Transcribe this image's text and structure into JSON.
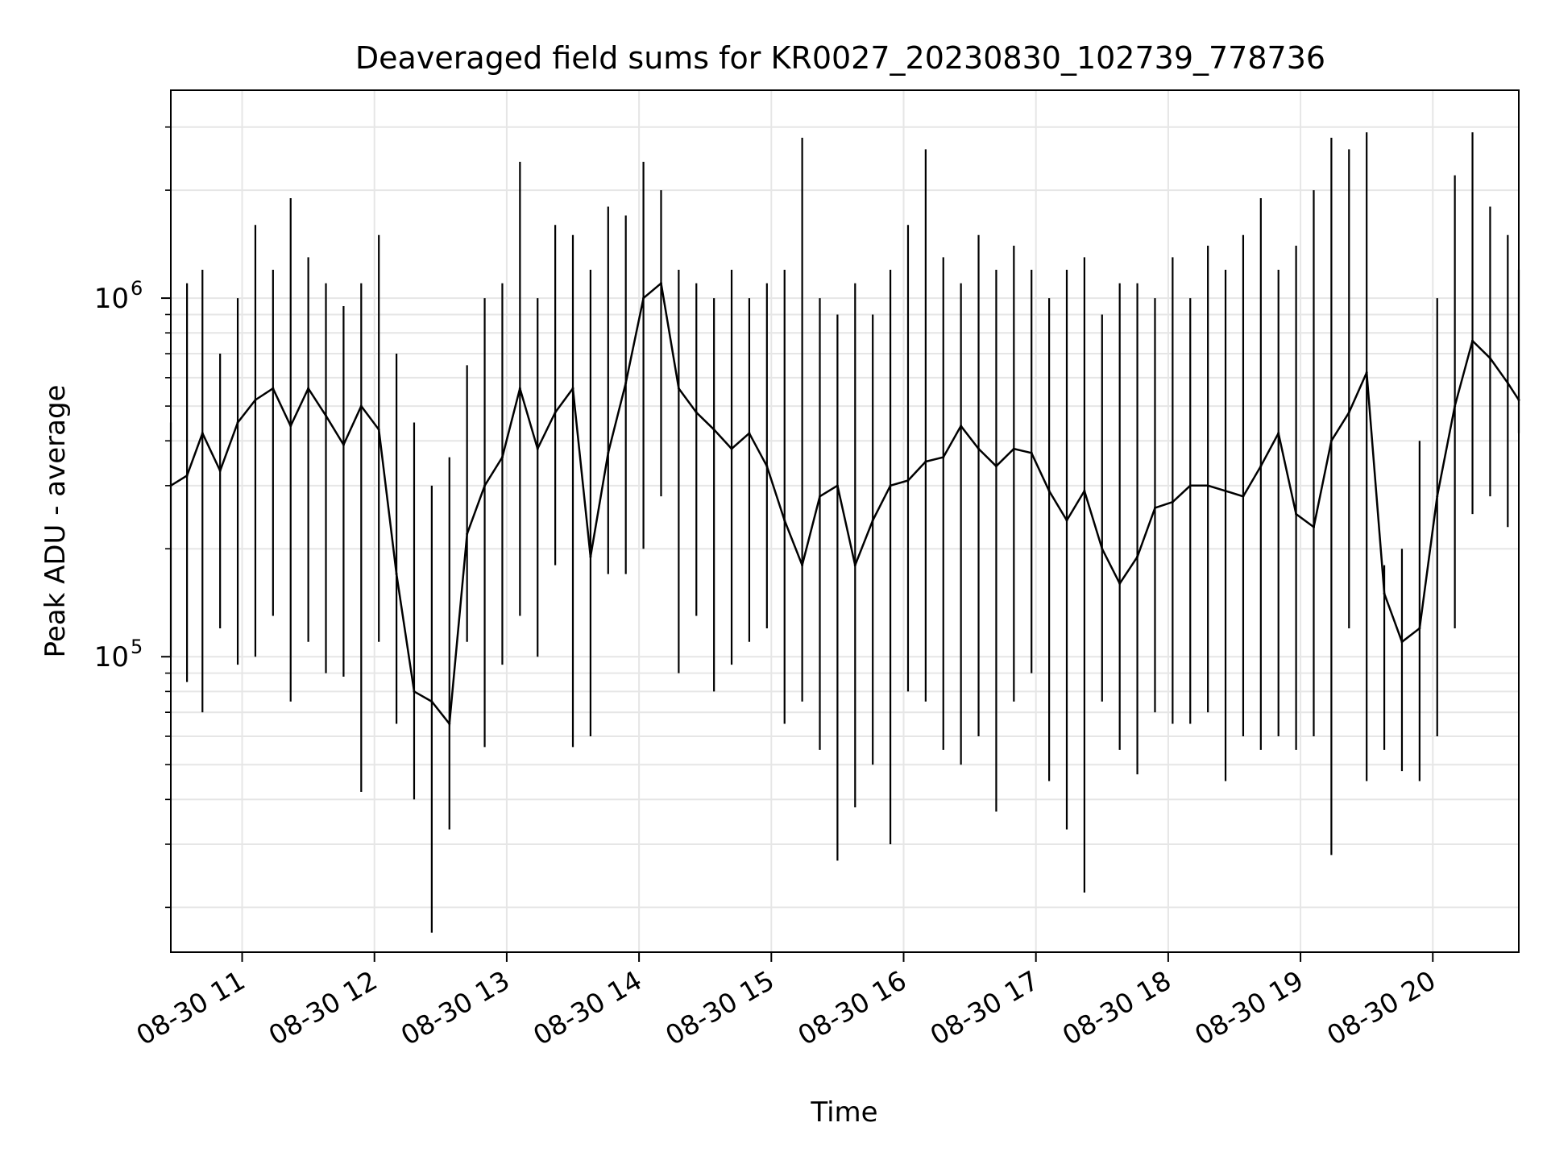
{
  "chart_data": {
    "type": "line",
    "title": "Deaveraged field sums for KR0027_20230830_102739_778736",
    "xlabel": "Time",
    "ylabel": "Peak ADU - average",
    "y_scale": "log",
    "ylim": [
      15000,
      3800000
    ],
    "xlim": [
      "2023-08-30T10:27:39",
      "2023-08-30T20:39:00"
    ],
    "grid": true,
    "line_color": "#000000",
    "x_ticks": [
      {
        "t": "2023-08-30T11:00:00",
        "label": "08-30 11"
      },
      {
        "t": "2023-08-30T12:00:00",
        "label": "08-30 12"
      },
      {
        "t": "2023-08-30T13:00:00",
        "label": "08-30 13"
      },
      {
        "t": "2023-08-30T14:00:00",
        "label": "08-30 14"
      },
      {
        "t": "2023-08-30T15:00:00",
        "label": "08-30 15"
      },
      {
        "t": "2023-08-30T16:00:00",
        "label": "08-30 16"
      },
      {
        "t": "2023-08-30T17:00:00",
        "label": "08-30 17"
      },
      {
        "t": "2023-08-30T18:00:00",
        "label": "08-30 18"
      },
      {
        "t": "2023-08-30T19:00:00",
        "label": "08-30 19"
      },
      {
        "t": "2023-08-30T20:00:00",
        "label": "08-30 20"
      }
    ],
    "y_ticks": [
      {
        "value": 100000,
        "base": "10",
        "exp": "5"
      },
      {
        "value": 1000000,
        "base": "10",
        "exp": "6"
      }
    ],
    "x": [
      "2023-08-30T10:27:39",
      "2023-08-30T10:35:00",
      "2023-08-30T10:42:00",
      "2023-08-30T10:50:00",
      "2023-08-30T10:58:00",
      "2023-08-30T11:06:00",
      "2023-08-30T11:14:00",
      "2023-08-30T11:22:00",
      "2023-08-30T11:30:00",
      "2023-08-30T11:38:00",
      "2023-08-30T11:46:00",
      "2023-08-30T11:54:00",
      "2023-08-30T12:02:00",
      "2023-08-30T12:10:00",
      "2023-08-30T12:18:00",
      "2023-08-30T12:26:00",
      "2023-08-30T12:34:00",
      "2023-08-30T12:42:00",
      "2023-08-30T12:50:00",
      "2023-08-30T12:58:00",
      "2023-08-30T13:06:00",
      "2023-08-30T13:14:00",
      "2023-08-30T13:22:00",
      "2023-08-30T13:30:00",
      "2023-08-30T13:38:00",
      "2023-08-30T13:46:00",
      "2023-08-30T13:54:00",
      "2023-08-30T14:02:00",
      "2023-08-30T14:10:00",
      "2023-08-30T14:18:00",
      "2023-08-30T14:26:00",
      "2023-08-30T14:34:00",
      "2023-08-30T14:42:00",
      "2023-08-30T14:50:00",
      "2023-08-30T14:58:00",
      "2023-08-30T15:06:00",
      "2023-08-30T15:14:00",
      "2023-08-30T15:22:00",
      "2023-08-30T15:30:00",
      "2023-08-30T15:38:00",
      "2023-08-30T15:46:00",
      "2023-08-30T15:54:00",
      "2023-08-30T16:02:00",
      "2023-08-30T16:10:00",
      "2023-08-30T16:18:00",
      "2023-08-30T16:26:00",
      "2023-08-30T16:34:00",
      "2023-08-30T16:42:00",
      "2023-08-30T16:50:00",
      "2023-08-30T16:58:00",
      "2023-08-30T17:06:00",
      "2023-08-30T17:14:00",
      "2023-08-30T17:22:00",
      "2023-08-30T17:30:00",
      "2023-08-30T17:38:00",
      "2023-08-30T17:46:00",
      "2023-08-30T17:54:00",
      "2023-08-30T18:02:00",
      "2023-08-30T18:10:00",
      "2023-08-30T18:18:00",
      "2023-08-30T18:26:00",
      "2023-08-30T18:34:00",
      "2023-08-30T18:42:00",
      "2023-08-30T18:50:00",
      "2023-08-30T18:58:00",
      "2023-08-30T19:06:00",
      "2023-08-30T19:14:00",
      "2023-08-30T19:22:00",
      "2023-08-30T19:30:00",
      "2023-08-30T19:38:00",
      "2023-08-30T19:46:00",
      "2023-08-30T19:54:00",
      "2023-08-30T20:02:00",
      "2023-08-30T20:10:00",
      "2023-08-30T20:18:00",
      "2023-08-30T20:26:00",
      "2023-08-30T20:34:00",
      "2023-08-30T20:39:00"
    ],
    "y": [
      300000,
      320000,
      420000,
      330000,
      450000,
      520000,
      560000,
      440000,
      560000,
      470000,
      390000,
      500000,
      430000,
      170000,
      80000,
      75000,
      65000,
      220000,
      300000,
      360000,
      560000,
      380000,
      480000,
      560000,
      190000,
      370000,
      580000,
      1000000,
      1100000,
      560000,
      480000,
      430000,
      380000,
      420000,
      340000,
      240000,
      180000,
      280000,
      300000,
      180000,
      240000,
      300000,
      310000,
      350000,
      360000,
      440000,
      380000,
      340000,
      380000,
      370000,
      290000,
      240000,
      290000,
      200000,
      160000,
      190000,
      260000,
      270000,
      300000,
      300000,
      290000,
      280000,
      340000,
      420000,
      250000,
      230000,
      400000,
      480000,
      620000,
      150000,
      110000,
      120000,
      280000,
      500000,
      760000,
      680000,
      580000,
      520000
    ],
    "y_upper": [
      450000,
      1100000,
      1200000,
      700000,
      1000000,
      1600000,
      1200000,
      1900000,
      1300000,
      1100000,
      950000,
      1100000,
      1500000,
      700000,
      450000,
      300000,
      360000,
      650000,
      1000000,
      1100000,
      2400000,
      1000000,
      1600000,
      1500000,
      1200000,
      1800000,
      1700000,
      2400000,
      2000000,
      1200000,
      1100000,
      1000000,
      1200000,
      1000000,
      1100000,
      1200000,
      2800000,
      1000000,
      900000,
      1100000,
      900000,
      1200000,
      1600000,
      2600000,
      1300000,
      1100000,
      1500000,
      1200000,
      1400000,
      1200000,
      1000000,
      1200000,
      1300000,
      900000,
      1100000,
      1100000,
      1000000,
      1300000,
      1000000,
      1400000,
      1200000,
      1500000,
      1900000,
      1200000,
      1400000,
      2000000,
      2800000,
      2600000,
      2900000,
      180000,
      200000,
      400000,
      1000000,
      2200000,
      2900000,
      1800000,
      1500000,
      1200000
    ],
    "y_lower": [
      100000,
      85000,
      70000,
      120000,
      95000,
      100000,
      130000,
      75000,
      110000,
      90000,
      88000,
      42000,
      110000,
      65000,
      40000,
      17000,
      33000,
      110000,
      56000,
      95000,
      130000,
      100000,
      180000,
      56000,
      60000,
      170000,
      170000,
      200000,
      280000,
      90000,
      130000,
      80000,
      95000,
      110000,
      120000,
      65000,
      75000,
      55000,
      27000,
      38000,
      50000,
      30000,
      80000,
      75000,
      55000,
      50000,
      60000,
      37000,
      75000,
      90000,
      45000,
      33000,
      22000,
      75000,
      55000,
      47000,
      70000,
      65000,
      65000,
      70000,
      45000,
      60000,
      55000,
      60000,
      55000,
      60000,
      28000,
      120000,
      45000,
      55000,
      48000,
      45000,
      60000,
      120000,
      250000,
      280000,
      230000,
      420000
    ]
  }
}
